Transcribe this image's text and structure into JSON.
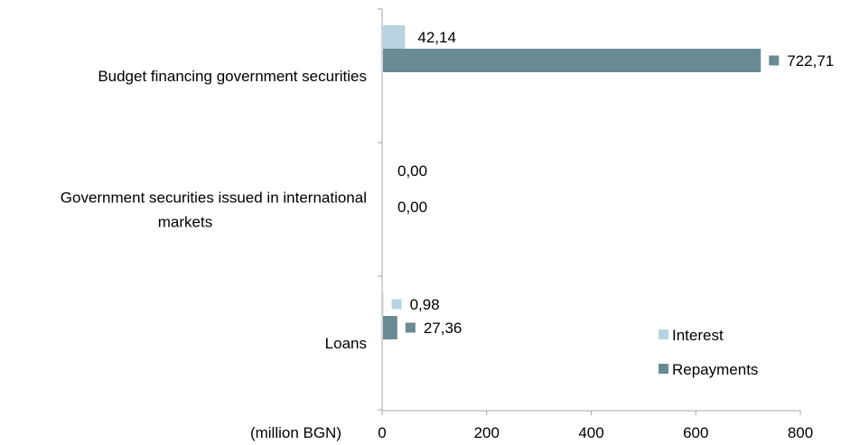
{
  "chart_data": {
    "type": "bar",
    "orientation": "horizontal",
    "categories": [
      [
        "Budget financing government securities"
      ],
      [
        "Government securities issued in international",
        "markets"
      ],
      [
        "Loans"
      ]
    ],
    "series": [
      {
        "name": "Interest",
        "color": "#b8d3e0",
        "values": [
          42.14,
          0.0,
          0.98
        ],
        "labels": [
          "42,14",
          "0,00",
          "0,98"
        ]
      },
      {
        "name": "Repayments",
        "color": "#6a8a94",
        "values": [
          722.71,
          0.0,
          27.36
        ],
        "labels": [
          "722,71",
          "0,00",
          "27,36"
        ]
      }
    ],
    "xlim": [
      0,
      800
    ],
    "xticks": [
      0,
      200,
      400,
      600,
      800
    ],
    "xtick_labels": [
      "0",
      "200",
      "400",
      "600",
      "800"
    ],
    "xlabel": "(million BGN)",
    "legend_position": "bottom-right",
    "grid": false
  }
}
